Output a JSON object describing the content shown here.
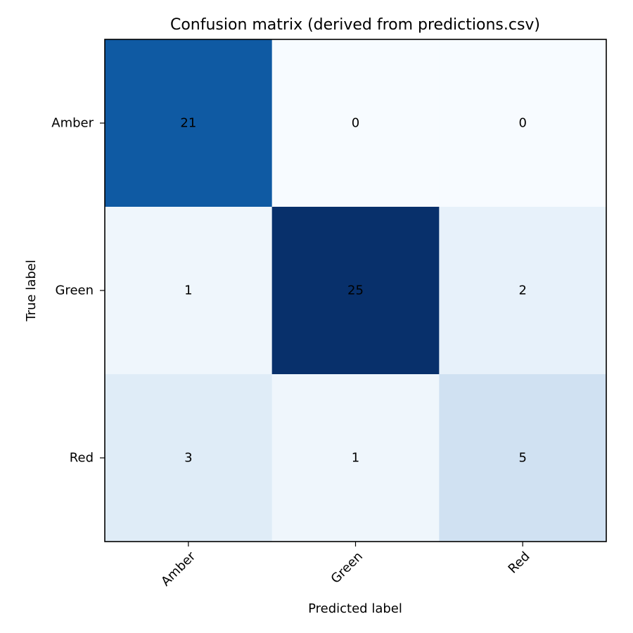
{
  "chart_data": {
    "type": "heatmap",
    "title": "Confusion matrix (derived from predictions.csv)",
    "xlabel": "Predicted label",
    "ylabel": "True label",
    "x_categories": [
      "Amber",
      "Green",
      "Red"
    ],
    "y_categories": [
      "Amber",
      "Green",
      "Red"
    ],
    "values": [
      [
        21,
        0,
        0
      ],
      [
        1,
        25,
        2
      ],
      [
        3,
        1,
        5
      ]
    ],
    "colormap": "Blues",
    "x_tick_rotation": 45,
    "grid": false
  }
}
